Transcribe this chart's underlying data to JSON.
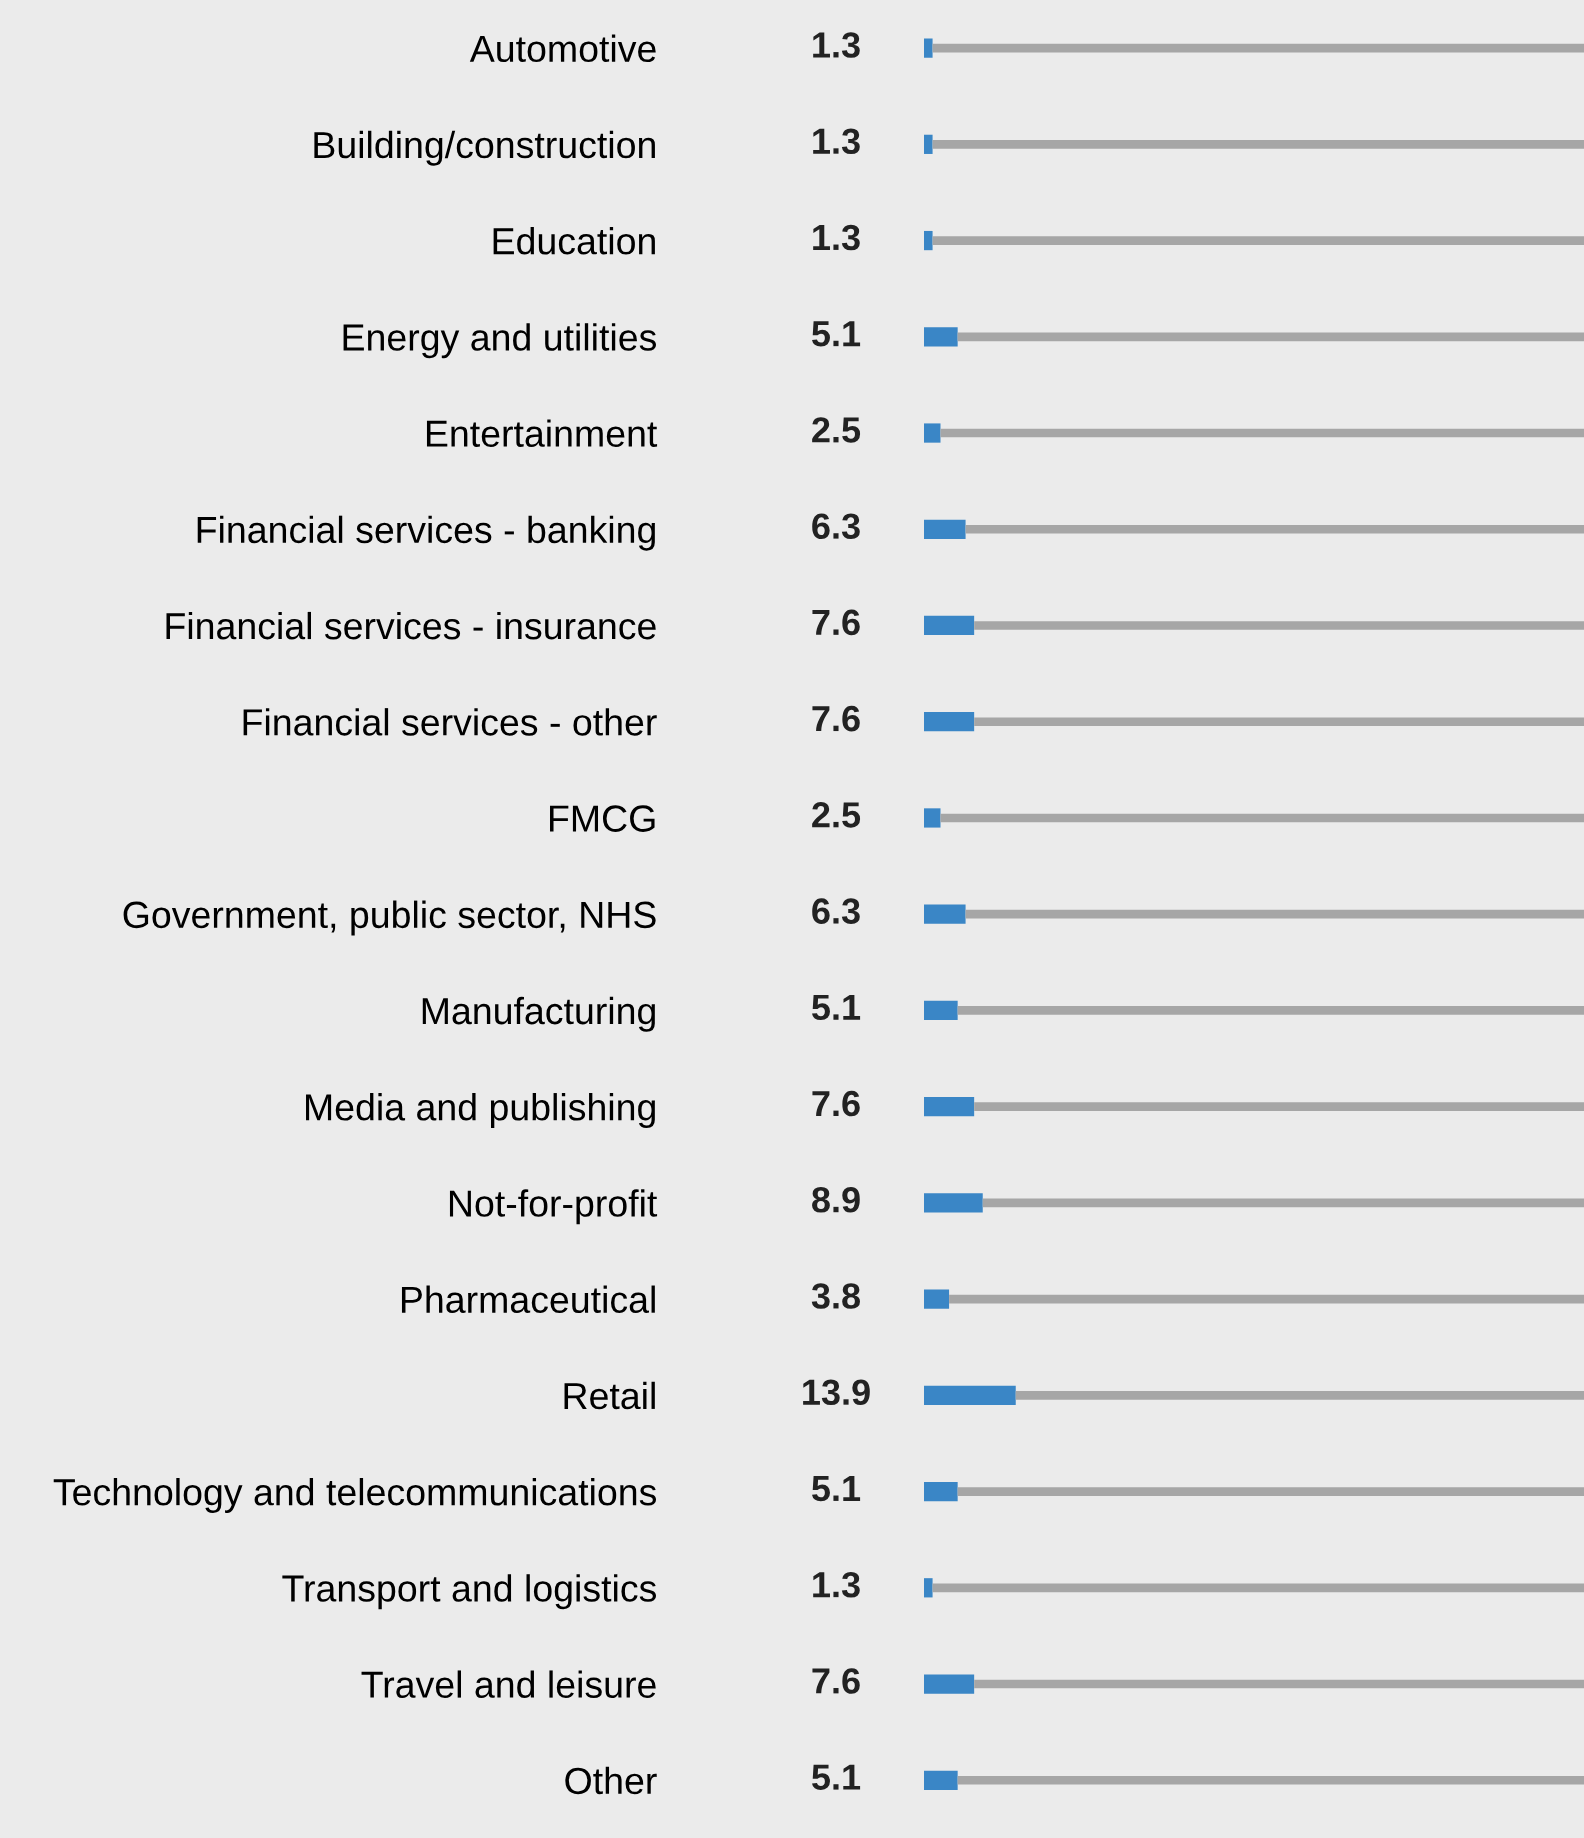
{
  "chart_data": {
    "type": "bar",
    "orientation": "horizontal",
    "stacked": true,
    "tick_labels": "y",
    "grid": false,
    "legend": false,
    "xlim": [
      0,
      100
    ],
    "categories": [
      "Automotive",
      "Building/construction",
      "Education",
      "Energy and utilities",
      "Entertainment",
      "Financial services - banking",
      "Financial services - insurance",
      "Financial services - other",
      "FMCG",
      "Government, public sector, NHS",
      "Manufacturing",
      "Media and publishing",
      "Not-for-profit",
      "Pharmaceutical",
      "Retail",
      "Technology and telecommunications",
      "Transport and logistics",
      "Travel and leisure",
      "Other"
    ],
    "series": [
      {
        "color": "#3a86c6",
        "values": [
          1.3,
          1.3,
          1.3,
          5.1,
          2.5,
          6.3,
          7.6,
          7.6,
          2.5,
          6.3,
          5.1,
          7.6,
          8.9,
          3.8,
          13.9,
          5.1,
          1.3,
          7.6,
          5.1
        ],
        "value_labels": [
          "1.3",
          "1.3",
          "1.3",
          "5.1",
          "2.5",
          "6.3",
          "7.6",
          "7.6",
          "2.5",
          "6.3",
          "5.1",
          "7.6",
          "8.9",
          "3.8",
          "13.9",
          "5.1",
          "1.3",
          "7.6",
          "5.1"
        ]
      },
      {
        "color": "#a6a6a6",
        "values": [
          98.7,
          98.7,
          98.7,
          94.9,
          97.5,
          93.7,
          92.4,
          92.4,
          97.5,
          93.7,
          94.9,
          92.4,
          91.1,
          96.2,
          86.1,
          94.9,
          98.7,
          92.4,
          94.9
        ]
      }
    ]
  }
}
